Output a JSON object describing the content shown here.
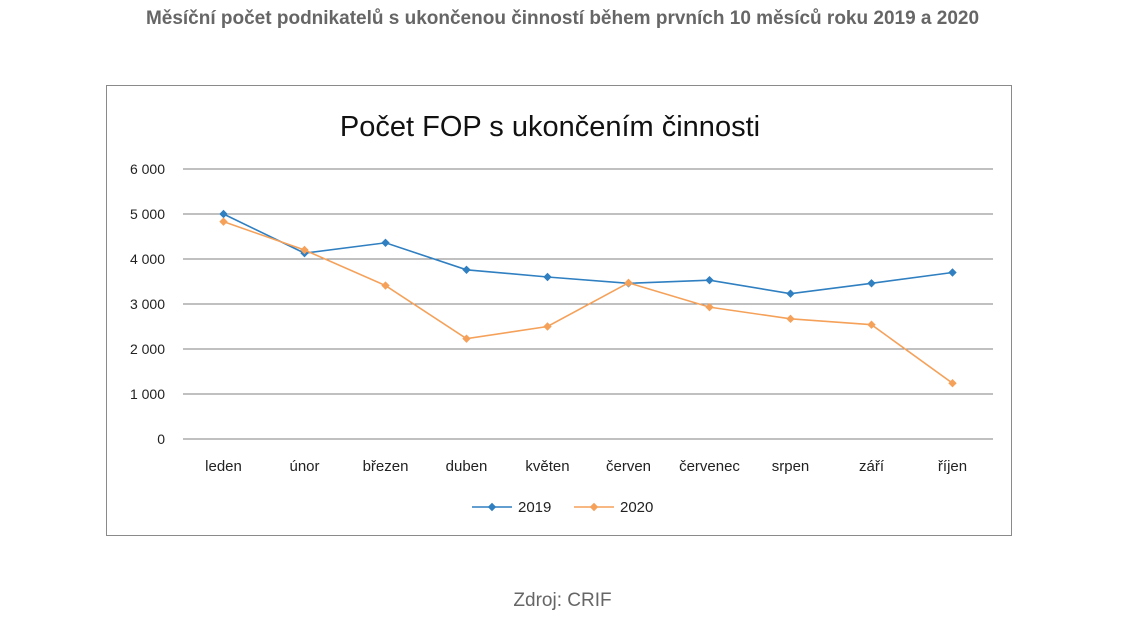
{
  "page": {
    "heading": "Měsíční počet podnikatelů s ukončenou činností během prvních 10 měsíců roku 2019 a 2020",
    "source": "Zdroj: CRIF"
  },
  "colors": {
    "series_2019": "#2f7fc1",
    "series_2020": "#f5a15a",
    "gridline": "#808080",
    "text": "#222222"
  },
  "chart_data": {
    "type": "line",
    "title": "Počet FOP s ukončením činnosti",
    "xlabel": "",
    "ylabel": "",
    "categories": [
      "leden",
      "únor",
      "březen",
      "duben",
      "květen",
      "červen",
      "červenec",
      "srpen",
      "září",
      "říjen"
    ],
    "series": [
      {
        "name": "2019",
        "color": "#2f7fc1",
        "values": [
          5000,
          4130,
          4360,
          3760,
          3600,
          3460,
          3530,
          3230,
          3460,
          3700
        ]
      },
      {
        "name": "2020",
        "color": "#f5a15a",
        "values": [
          4830,
          4200,
          3410,
          2230,
          2500,
          3470,
          2930,
          2670,
          2540,
          1240
        ]
      }
    ],
    "ylim": [
      0,
      6000
    ],
    "yticks": [
      0,
      1000,
      2000,
      3000,
      4000,
      5000,
      6000
    ],
    "ytick_labels": [
      "0",
      "1 000",
      "2 000",
      "3 000",
      "4 000",
      "5 000",
      "6 000"
    ],
    "grid": true,
    "legend": "bottom",
    "marker": "diamond"
  }
}
